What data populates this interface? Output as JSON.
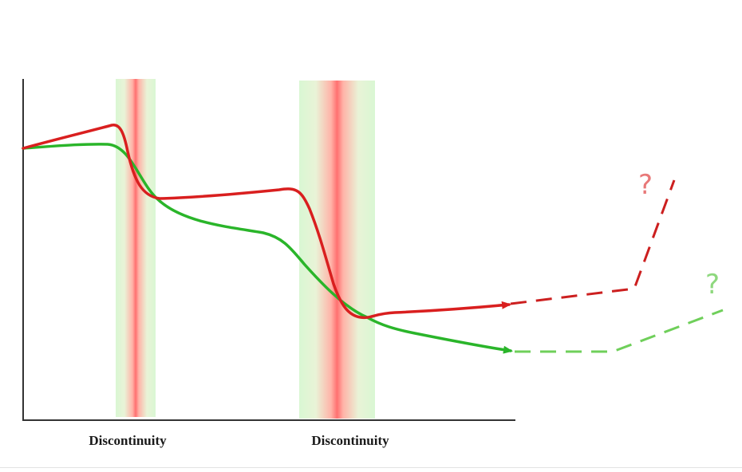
{
  "discontinuities": [
    {
      "label": "Discontinuity"
    },
    {
      "label": "Discontinuity"
    }
  ],
  "uncertainty": {
    "red_mark": "?",
    "green_mark": "?"
  },
  "colors": {
    "red_path": "#d91f1f",
    "green_path": "#2ab52a",
    "red_dashed": "#cc1f1f",
    "green_dashed": "#6fcf5a",
    "band_core": "#ff7a7a",
    "band_edge": "#d6f7cf",
    "axis": "#333333"
  }
}
